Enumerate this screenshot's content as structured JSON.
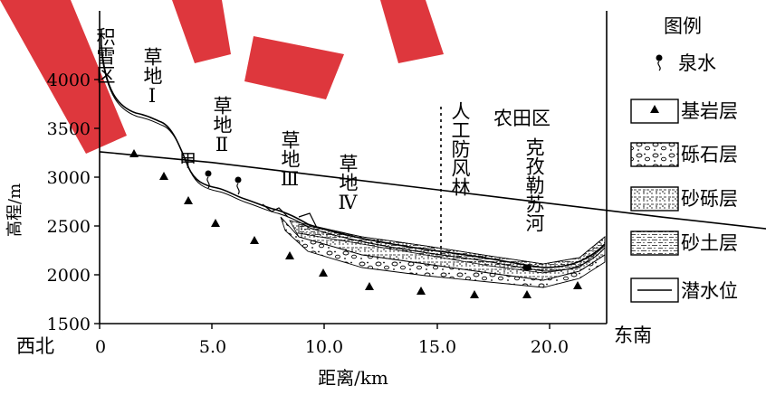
{
  "figure": {
    "ylabel": "高程/m",
    "xlabel": "距离/km",
    "west_label": "西北",
    "east_label": "东南",
    "y_ticks": [
      "4000",
      "3500",
      "3000",
      "2500",
      "2000",
      "1500"
    ],
    "x_ticks": [
      "0",
      "5.0",
      "10.0",
      "15.0",
      "20.0"
    ],
    "zone_labels": {
      "snow": "积雪区",
      "grass1": "草地Ⅰ",
      "grass2": "草地Ⅱ",
      "grass3": "草地Ⅲ",
      "grass4": "草地Ⅳ",
      "forest": "人工防风林",
      "farmland": "农田区",
      "river": "克孜勒苏河",
      "point_a": "甲"
    }
  },
  "legend": {
    "title": "图例",
    "items": [
      {
        "label": "泉水",
        "icon": "spring-icon"
      },
      {
        "label": "基岩层",
        "icon": "bedrock-icon"
      },
      {
        "label": "砾石层",
        "icon": "gravel-icon"
      },
      {
        "label": "砂砾层",
        "icon": "sandy-gravel-icon"
      },
      {
        "label": "砂土层",
        "icon": "sandy-soil-icon"
      },
      {
        "label": "潜水位",
        "icon": "water-table-icon"
      }
    ]
  },
  "chart_data": {
    "type": "line",
    "xlabel": "距离/km",
    "ylabel": "高程/m",
    "xlim": [
      0,
      22.5
    ],
    "ylim": [
      1500,
      4300
    ],
    "x_ticks": [
      0,
      5,
      10,
      15,
      20
    ],
    "y_ticks": [
      1500,
      2000,
      2500,
      3000,
      3500,
      4000
    ],
    "series": [
      {
        "name": "潜水位",
        "x": [
          0,
          1,
          2,
          3,
          4,
          5,
          6,
          7,
          8,
          9,
          10,
          11,
          12,
          13,
          14,
          15,
          16,
          17,
          18,
          19,
          20,
          21,
          22,
          22.5
        ],
        "y": [
          3260,
          3150,
          3010,
          2870,
          2730,
          2590,
          2460,
          2330,
          2220,
          2120,
          2030,
          1960,
          1910,
          1880,
          1860,
          1850,
          1850,
          1850,
          1860,
          1880,
          1920,
          1980,
          2090,
          2150
        ]
      }
    ]
  }
}
